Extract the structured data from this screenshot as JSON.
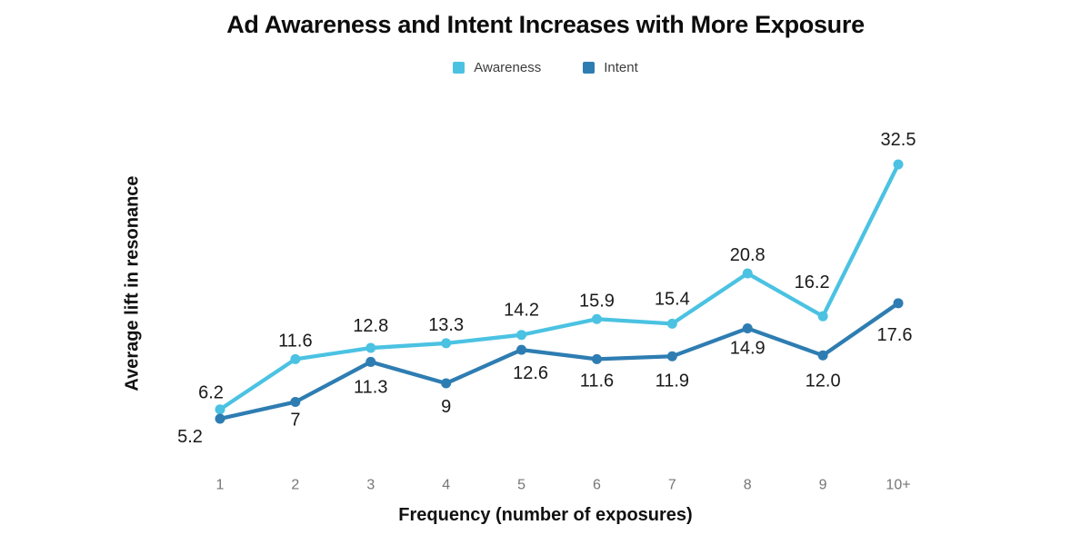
{
  "chart_data": {
    "type": "line",
    "title": "Ad Awareness and Intent Increases with More Exposure",
    "xlabel": "Frequency (number of exposures)",
    "ylabel": "Average lift in resonance",
    "categories": [
      "1",
      "2",
      "3",
      "4",
      "5",
      "6",
      "7",
      "8",
      "9",
      "10+"
    ],
    "series": [
      {
        "name": "Awareness",
        "color": "#4BC2E2",
        "values": [
          6.2,
          11.6,
          12.8,
          13.3,
          14.2,
          15.9,
          15.4,
          20.8,
          16.2,
          32.5
        ],
        "labels": [
          "6.2",
          "11.6",
          "12.8",
          "13.3",
          "14.2",
          "15.9",
          "15.4",
          "20.8",
          "16.2",
          "32.5"
        ],
        "label_position": "above",
        "label_dx": [
          -10,
          0,
          0,
          0,
          0,
          0,
          0,
          0,
          -12,
          0
        ],
        "label_dy": [
          2,
          0,
          -4,
          0,
          -7,
          0,
          -7,
          0,
          -17,
          -7
        ]
      },
      {
        "name": "Intent",
        "color": "#2E7DB2",
        "values": [
          5.2,
          7,
          11.3,
          9,
          12.6,
          11.6,
          11.9,
          14.9,
          12.0,
          17.6
        ],
        "labels": [
          "5.2",
          "7",
          "11.3",
          "9",
          "12.6",
          "11.6",
          "11.9",
          "14.9",
          "12.0",
          "17.6"
        ],
        "label_position": "below",
        "label_dx": [
          -33,
          0,
          0,
          0,
          10,
          0,
          0,
          0,
          0,
          -4
        ],
        "label_dy": [
          -6,
          -6,
          2,
          0,
          0,
          -2,
          1,
          -4,
          2,
          9
        ]
      }
    ],
    "legend_position": "top",
    "grid": false,
    "axis_lines": false,
    "background": "#ffffff",
    "text_color": "#1a1a1a",
    "tick_color": "#757575"
  }
}
